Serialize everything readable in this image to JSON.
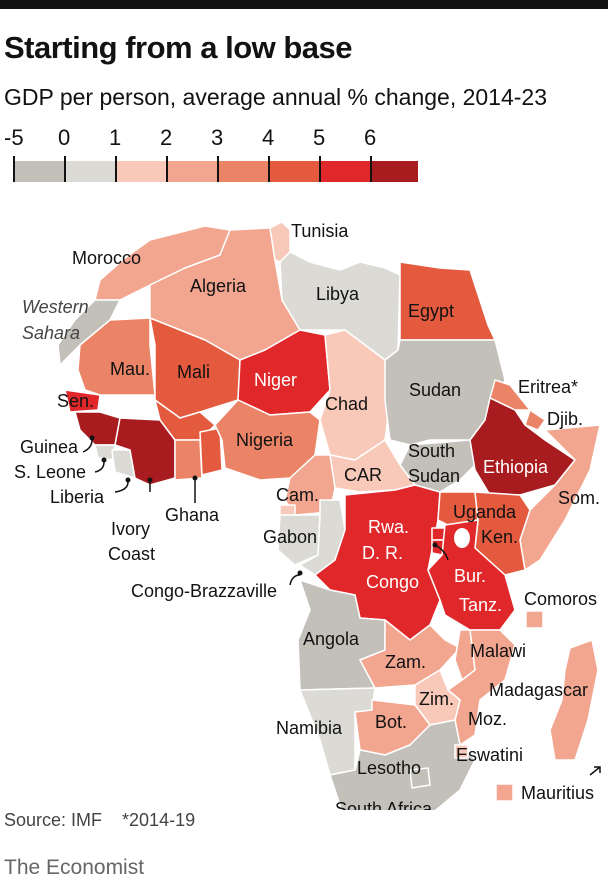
{
  "header": {
    "title": "Starting from a low base",
    "subtitle": "GDP per person, average annual % change, 2014-23"
  },
  "legend": {
    "labels": [
      "-5",
      "0",
      "1",
      "2",
      "3",
      "4",
      "5",
      "6"
    ],
    "bins": [
      {
        "from": -5,
        "to": 0,
        "color": "#c2c0b9"
      },
      {
        "from": 0,
        "to": 1,
        "color": "#dcdad5"
      },
      {
        "from": 1,
        "to": 2,
        "color": "#f8c8b8"
      },
      {
        "from": 2,
        "to": 3,
        "color": "#f2a58f"
      },
      {
        "from": 3,
        "to": 4,
        "color": "#eb8467"
      },
      {
        "from": 4,
        "to": 5,
        "color": "#e35a3e"
      },
      {
        "from": 5,
        "to": 6,
        "color": "#e0282b"
      },
      {
        "from": 6,
        "to": 7,
        "color": "#a81b1f"
      }
    ]
  },
  "countries": [
    {
      "id": "tunisia",
      "label": "Tunisia",
      "bin": 2
    },
    {
      "id": "morocco",
      "label": "Morocco",
      "bin": 3
    },
    {
      "id": "algeria",
      "label": "Algeria",
      "bin": 3
    },
    {
      "id": "libya",
      "label": "Libya",
      "bin": 1
    },
    {
      "id": "egypt",
      "label": "Egypt",
      "bin": 5
    },
    {
      "id": "western-sahara",
      "label": "Western Sahara",
      "bin": 0
    },
    {
      "id": "mauritania",
      "label": "Mau.",
      "bin": 4
    },
    {
      "id": "mali",
      "label": "Mali",
      "bin": 5
    },
    {
      "id": "niger",
      "label": "Niger",
      "bin": 6
    },
    {
      "id": "chad",
      "label": "Chad",
      "bin": 2
    },
    {
      "id": "sudan",
      "label": "Sudan",
      "bin": 0
    },
    {
      "id": "eritrea",
      "label": "Eritrea*",
      "bin": 4
    },
    {
      "id": "djibouti",
      "label": "Djib.",
      "bin": 4
    },
    {
      "id": "senegal",
      "label": "Sen.",
      "bin": 6
    },
    {
      "id": "guinea",
      "label": "Guinea",
      "bin": 7
    },
    {
      "id": "sierra-leone",
      "label": "S. Leone",
      "bin": 1
    },
    {
      "id": "liberia",
      "label": "Liberia",
      "bin": 1
    },
    {
      "id": "ivory-coast",
      "label": "Ivory Coast",
      "bin": 7
    },
    {
      "id": "ghana",
      "label": "Ghana",
      "bin": 4
    },
    {
      "id": "nigeria",
      "label": "Nigeria",
      "bin": 4
    },
    {
      "id": "south-sudan",
      "label": "South Sudan",
      "bin": 0
    },
    {
      "id": "ethiopia",
      "label": "Ethiopia",
      "bin": 7
    },
    {
      "id": "somalia",
      "label": "Som.",
      "bin": 3
    },
    {
      "id": "car",
      "label": "CAR",
      "bin": 2
    },
    {
      "id": "cameroon",
      "label": "Cam.",
      "bin": 3
    },
    {
      "id": "gabon",
      "label": "Gabon",
      "bin": 1
    },
    {
      "id": "congo-brazzaville",
      "label": "Congo-Brazzaville",
      "bin": 1
    },
    {
      "id": "dr-congo",
      "label": "D. R. Congo",
      "bin": 6
    },
    {
      "id": "uganda",
      "label": "Uganda",
      "bin": 5
    },
    {
      "id": "kenya",
      "label": "Ken.",
      "bin": 5
    },
    {
      "id": "rwanda",
      "label": "Rwa.",
      "bin": 6
    },
    {
      "id": "burundi",
      "label": "Bur.",
      "bin": 6
    },
    {
      "id": "tanzania",
      "label": "Tanz.",
      "bin": 6
    },
    {
      "id": "comoros",
      "label": "Comoros",
      "bin": 3
    },
    {
      "id": "angola",
      "label": "Angola",
      "bin": 0
    },
    {
      "id": "zambia",
      "label": "Zam.",
      "bin": 3
    },
    {
      "id": "malawi",
      "label": "Malawi",
      "bin": 3
    },
    {
      "id": "madagascar",
      "label": "Madagascar",
      "bin": 3
    },
    {
      "id": "zimbabwe",
      "label": "Zim.",
      "bin": 2
    },
    {
      "id": "mozambique",
      "label": "Moz.",
      "bin": 3
    },
    {
      "id": "namibia",
      "label": "Namibia",
      "bin": 1
    },
    {
      "id": "botswana",
      "label": "Bot.",
      "bin": 3
    },
    {
      "id": "eswatini",
      "label": "Eswatini",
      "bin": 2
    },
    {
      "id": "lesotho",
      "label": "Lesotho",
      "bin": 0
    },
    {
      "id": "south-africa",
      "label": "South Africa",
      "bin": 0
    },
    {
      "id": "mauritius",
      "label": "Mauritius",
      "bin": 3
    }
  ],
  "footer": {
    "source": "Source: IMF    *2014-19",
    "brand": "The Economist"
  }
}
